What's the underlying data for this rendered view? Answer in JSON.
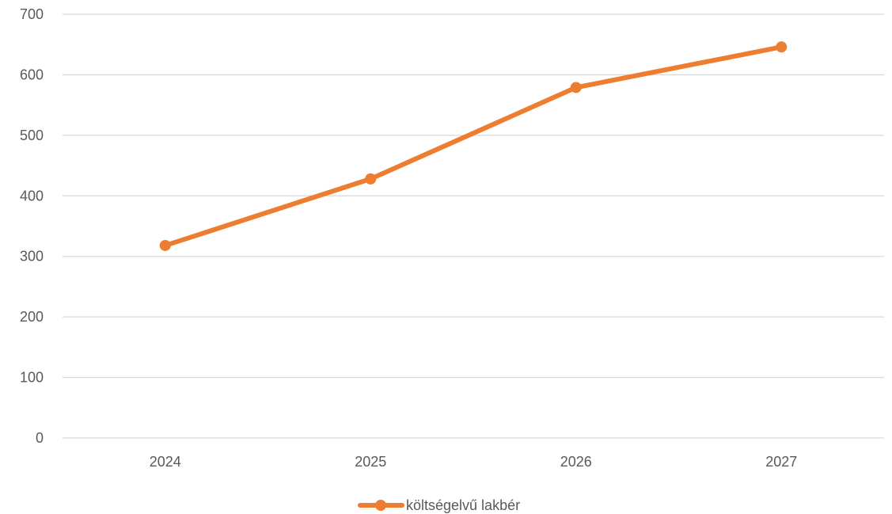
{
  "chart_data": {
    "type": "line",
    "categories": [
      "2024",
      "2025",
      "2026",
      "2027"
    ],
    "series": [
      {
        "name": "költségelvű lakbér",
        "values": [
          318,
          428,
          579,
          646
        ],
        "color": "#ED7D31"
      }
    ],
    "ylim": [
      0,
      700
    ],
    "yticks": [
      0,
      100,
      200,
      300,
      400,
      500,
      600,
      700
    ],
    "grid": true,
    "gridColor": "#D9D9D9",
    "legend": "bottom-center"
  }
}
